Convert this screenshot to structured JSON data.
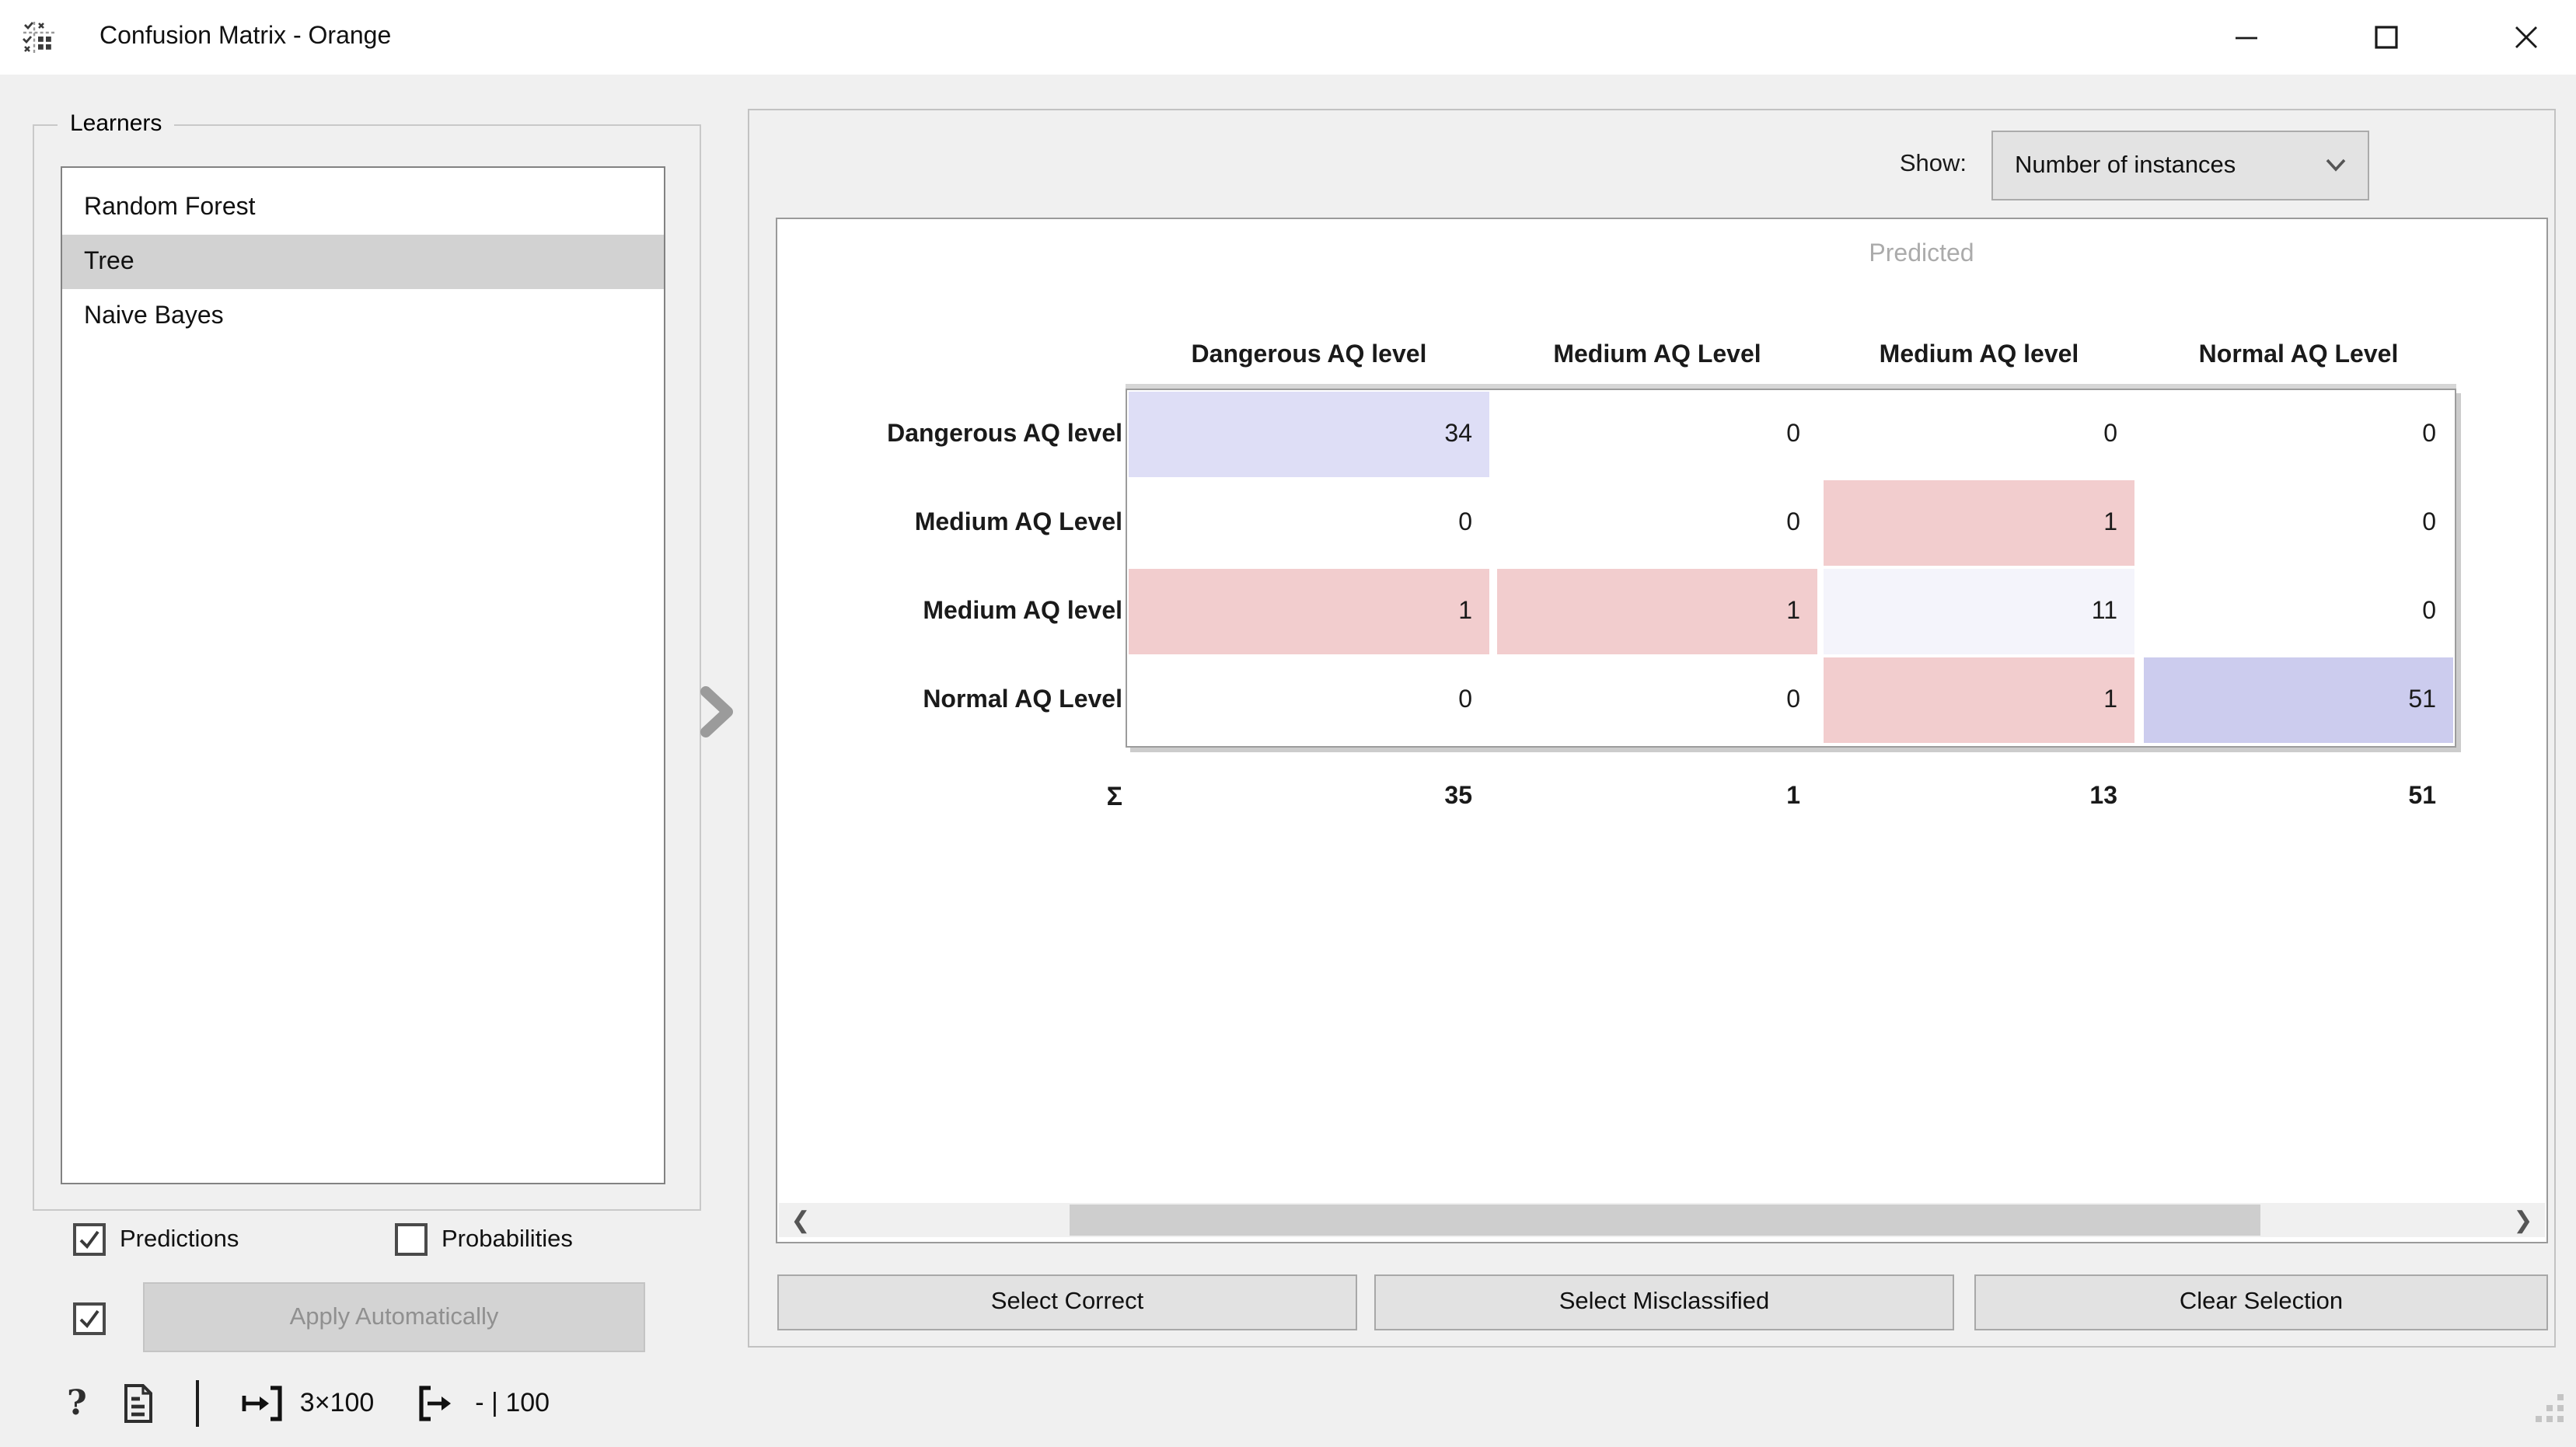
{
  "window": {
    "title": "Confusion Matrix - Orange"
  },
  "learners": {
    "group_label": "Learners",
    "items": [
      {
        "label": "Random Forest",
        "selected": false
      },
      {
        "label": "Tree",
        "selected": true
      },
      {
        "label": "Naive Bayes",
        "selected": false
      }
    ]
  },
  "options": {
    "predictions": {
      "label": "Predictions",
      "checked": true
    },
    "probabilities": {
      "label": "Probabilities",
      "checked": false
    },
    "auto_apply": {
      "label": "Apply Automatically",
      "checked": true
    }
  },
  "status_bar": {
    "help_glyph": "?",
    "input_summary": "3×100",
    "output_summary": "- | 100"
  },
  "show": {
    "label": "Show:",
    "selected_option": "Number of instances"
  },
  "matrix": {
    "axis_label": "Predicted",
    "columns": [
      "Dangerous AQ level",
      "Medium AQ Level",
      "Medium AQ level",
      "Normal AQ Level"
    ],
    "rows": [
      "Dangerous AQ level",
      "Medium AQ Level",
      "Medium AQ level",
      "Normal AQ Level"
    ],
    "values": [
      [
        34,
        0,
        0,
        0
      ],
      [
        0,
        0,
        1,
        0
      ],
      [
        1,
        1,
        11,
        0
      ],
      [
        0,
        0,
        1,
        51
      ]
    ],
    "cell_colors": [
      [
        "#dedef6",
        "#ffffff",
        "#ffffff",
        "#ffffff"
      ],
      [
        "#ffffff",
        "#ffffff",
        "#f2cdce",
        "#ffffff"
      ],
      [
        "#f2cdce",
        "#f2cdce",
        "#f4f4fb",
        "#ffffff"
      ],
      [
        "#ffffff",
        "#ffffff",
        "#f2cdce",
        "#ccccee"
      ]
    ],
    "sum_symbol": "Σ",
    "column_sums": [
      35,
      1,
      13,
      51
    ]
  },
  "action_buttons": [
    "Select Correct",
    "Select Misclassified",
    "Clear Selection"
  ],
  "colors": {
    "correct_strong": "#ccccee",
    "correct_light": "#dedef6",
    "misclassified": "#f2cdce",
    "selection_highlight": "#d2d2d2",
    "window_background": "#f0f0f0"
  }
}
